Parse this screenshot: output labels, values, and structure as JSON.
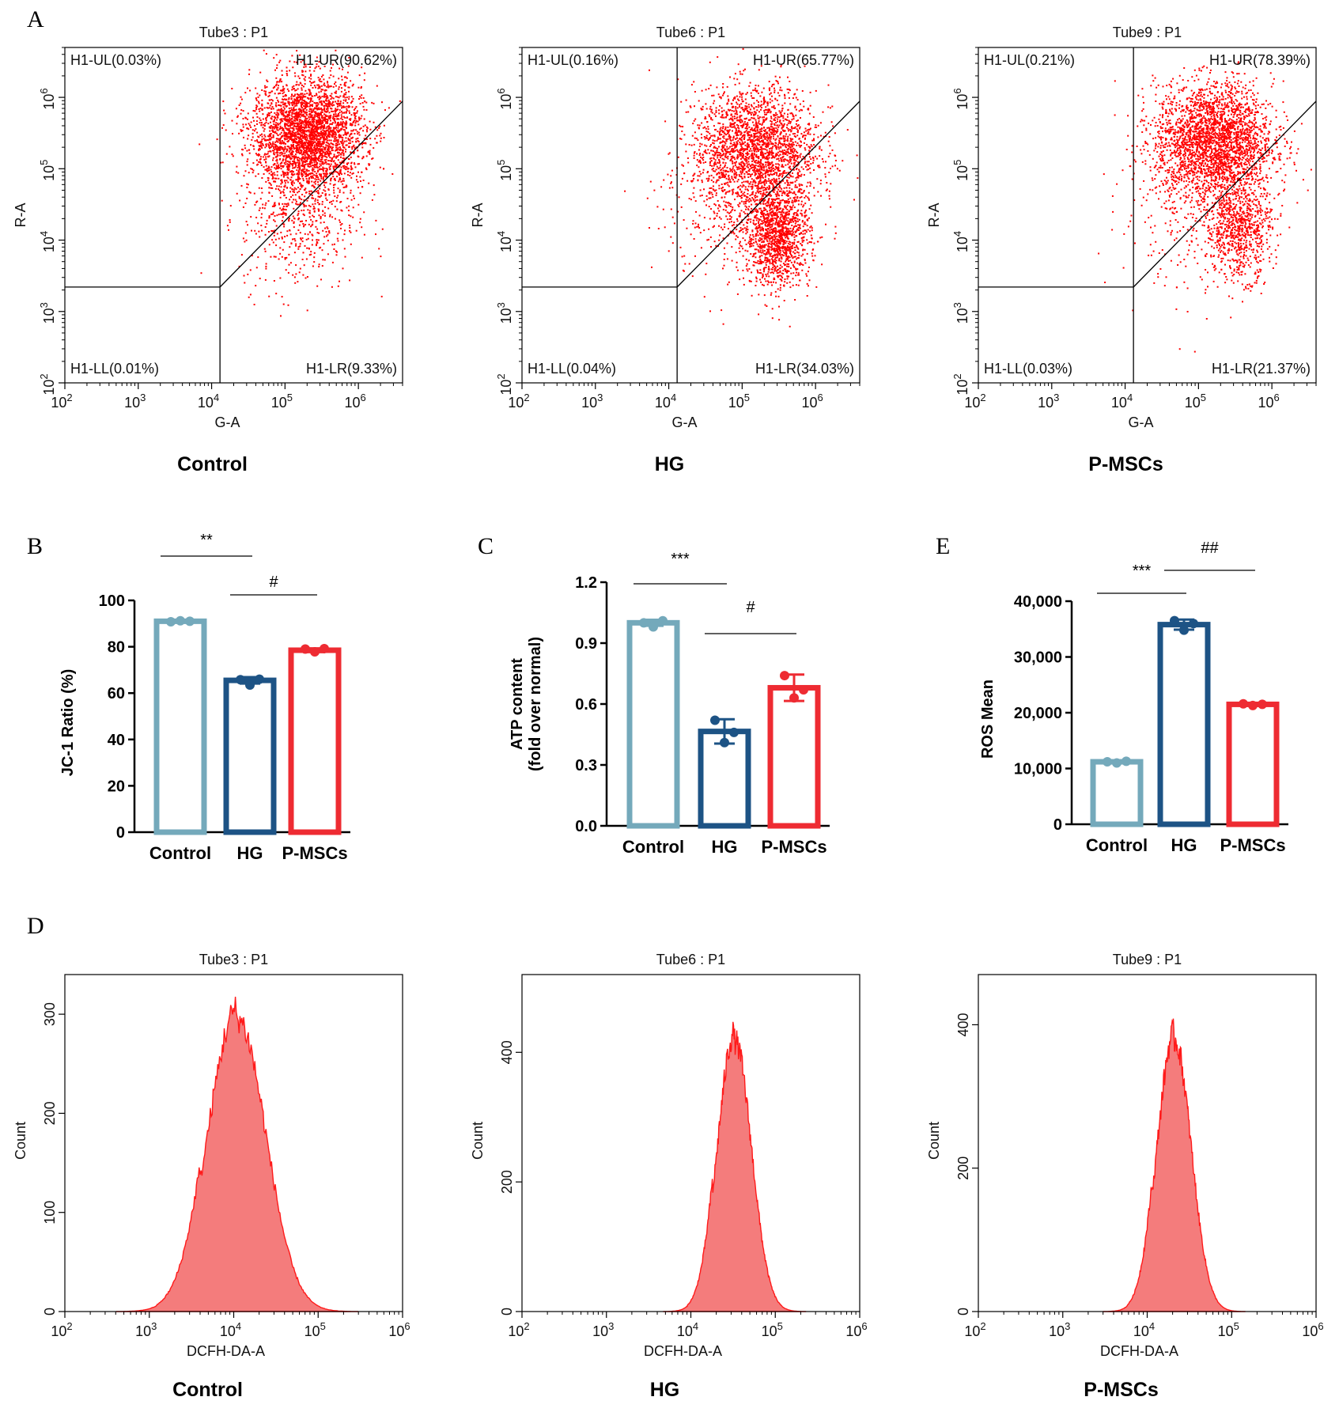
{
  "chart_data": [
    {
      "type": "scatter",
      "panel": "A",
      "title": "Tube3 : P1",
      "group": "Control",
      "xlabel": "G-A",
      "ylabel": "R-A",
      "x_scale": "log",
      "y_scale": "log",
      "xlim": [
        100,
        4000000
      ],
      "ylim": [
        100,
        5000000
      ],
      "x_ticks": [
        "2",
        "3",
        "4",
        "5",
        "6"
      ],
      "y_ticks": [
        "2",
        "3",
        "4",
        "5",
        "6"
      ],
      "gate_x": 13000,
      "gate_y": 2200,
      "quadrants": {
        "UL": "H1-UL(0.03%)",
        "UR": "H1-UR(90.62%)",
        "LL": "H1-LL(0.01%)",
        "LR": "H1-LR(9.33%)"
      },
      "clusters": [
        {
          "x": 200000,
          "y": 300000,
          "sx": 0.38,
          "sy": 0.4,
          "n": 3200
        },
        {
          "x": 150000,
          "y": 20000,
          "sx": 0.4,
          "sy": 0.5,
          "n": 500
        }
      ]
    },
    {
      "type": "scatter",
      "panel": "A",
      "title": "Tube6 : P1",
      "group": "HG",
      "xlabel": "G-A",
      "ylabel": "R-A",
      "x_scale": "log",
      "y_scale": "log",
      "xlim": [
        100,
        4000000
      ],
      "ylim": [
        100,
        5000000
      ],
      "x_ticks": [
        "2",
        "3",
        "4",
        "5",
        "6"
      ],
      "y_ticks": [
        "2",
        "3",
        "4",
        "5",
        "6"
      ],
      "gate_x": 13000,
      "gate_y": 2200,
      "quadrants": {
        "UL": "H1-UL(0.16%)",
        "UR": "H1-UR(65.77%)",
        "LL": "H1-LL(0.04%)",
        "LR": "H1-LR(34.03%)"
      },
      "clusters": [
        {
          "x": 150000,
          "y": 200000,
          "sx": 0.42,
          "sy": 0.42,
          "n": 2200
        },
        {
          "x": 300000,
          "y": 12000,
          "sx": 0.22,
          "sy": 0.35,
          "n": 1300
        },
        {
          "x": 80000,
          "y": 30000,
          "sx": 0.5,
          "sy": 0.6,
          "n": 400
        }
      ]
    },
    {
      "type": "scatter",
      "panel": "A",
      "title": "Tube9 : P1",
      "group": "P-MSCs",
      "xlabel": "G-A",
      "ylabel": "R-A",
      "x_scale": "log",
      "y_scale": "log",
      "xlim": [
        100,
        4000000
      ],
      "ylim": [
        100,
        5000000
      ],
      "x_ticks": [
        "2",
        "3",
        "4",
        "5",
        "6"
      ],
      "y_ticks": [
        "2",
        "3",
        "4",
        "5",
        "6"
      ],
      "gate_x": 13000,
      "gate_y": 2200,
      "quadrants": {
        "UL": "H1-UL(0.21%)",
        "UR": "H1-UR(78.39%)",
        "LL": "H1-LL(0.03%)",
        "LR": "H1-LR(21.37%)"
      },
      "clusters": [
        {
          "x": 160000,
          "y": 250000,
          "sx": 0.4,
          "sy": 0.4,
          "n": 2700
        },
        {
          "x": 350000,
          "y": 15000,
          "sx": 0.22,
          "sy": 0.35,
          "n": 800
        },
        {
          "x": 80000,
          "y": 30000,
          "sx": 0.5,
          "sy": 0.6,
          "n": 300
        }
      ]
    },
    {
      "type": "bar",
      "panel": "B",
      "ylabel": "JC-1 Ratio (%)",
      "categories": [
        "Control",
        "HG",
        "P-MSCs"
      ],
      "values": [
        91,
        65.5,
        78.5
      ],
      "errors": [
        0.6,
        1.4,
        0.8
      ],
      "points": [
        [
          90.8,
          91.2,
          91.0
        ],
        [
          65.8,
          63.5,
          66.0
        ],
        [
          79.0,
          77.8,
          79.2
        ]
      ],
      "colors": [
        "#74a9bb",
        "#1d5385",
        "#ee2b32"
      ],
      "ylim": [
        0,
        100
      ],
      "yticks": [
        "0",
        "20",
        "40",
        "60",
        "80",
        "100"
      ],
      "comparisons": [
        {
          "from": 0,
          "to": 1,
          "label": "**"
        },
        {
          "from": 1,
          "to": 2,
          "label": "#"
        }
      ]
    },
    {
      "type": "bar",
      "panel": "C",
      "ylabel": "ATP content",
      "ylabel2": "(fold over normal)",
      "categories": [
        "Control",
        "HG",
        "P-MSCs"
      ],
      "values": [
        1.0,
        0.465,
        0.68
      ],
      "errors": [
        0.015,
        0.06,
        0.065
      ],
      "points": [
        [
          1.0,
          0.98,
          1.01
        ],
        [
          0.52,
          0.41,
          0.46
        ],
        [
          0.74,
          0.63,
          0.67
        ]
      ],
      "colors": [
        "#74a9bb",
        "#1d5385",
        "#ee2b32"
      ],
      "ylim": [
        0,
        1.2
      ],
      "yticks": [
        "0.0",
        "0.3",
        "0.6",
        "0.9",
        "1.2"
      ],
      "comparisons": [
        {
          "from": 0,
          "to": 1,
          "label": "***"
        },
        {
          "from": 1,
          "to": 2,
          "label": "#"
        }
      ]
    },
    {
      "type": "bar",
      "panel": "E",
      "ylabel": "ROS Mean",
      "categories": [
        "Control",
        "HG",
        "P-MSCs"
      ],
      "values": [
        11200,
        35800,
        21500
      ],
      "errors": [
        150,
        900,
        250
      ],
      "points": [
        [
          11200,
          11000,
          11300
        ],
        [
          36500,
          34800,
          36000
        ],
        [
          21600,
          21300,
          21500
        ]
      ],
      "colors": [
        "#74a9bb",
        "#1d5385",
        "#ee2b32"
      ],
      "ylim": [
        0,
        40000
      ],
      "yticks": [
        "0",
        "10,000",
        "20,000",
        "30,000",
        "40,000"
      ],
      "comparisons": [
        {
          "from": 0,
          "to": 1,
          "label": "***"
        },
        {
          "from": 1,
          "to": 2,
          "label": "##"
        }
      ]
    },
    {
      "type": "area",
      "panel": "D",
      "title": "Tube3 : P1",
      "group": "Control",
      "xlabel": "DCFH-DA-A",
      "ylabel": "Count",
      "x_scale": "log",
      "xlim": [
        100,
        1000000
      ],
      "ylim": [
        0,
        340
      ],
      "x_ticks": [
        "2",
        "3",
        "4",
        "5",
        "6"
      ],
      "yticks": [
        "0",
        "100",
        "200",
        "300"
      ],
      "peak_x": 11000,
      "peak_y": 305,
      "width_decades": 0.34
    },
    {
      "type": "area",
      "panel": "D",
      "title": "Tube6 : P1",
      "group": "HG",
      "xlabel": "DCFH-DA-A",
      "ylabel": "Count",
      "x_scale": "log",
      "xlim": [
        100,
        1000000
      ],
      "ylim": [
        0,
        520
      ],
      "x_ticks": [
        "2",
        "3",
        "4",
        "5",
        "6"
      ],
      "yticks": [
        "0",
        "200",
        "400"
      ],
      "peak_x": 33000,
      "peak_y": 430,
      "width_decades": 0.2
    },
    {
      "type": "area",
      "panel": "D",
      "title": "Tube9 : P1",
      "group": "P-MSCs",
      "xlabel": "DCFH-DA-A",
      "ylabel": "Count",
      "x_scale": "log",
      "xlim": [
        100,
        1000000
      ],
      "ylim": [
        0,
        470
      ],
      "x_ticks": [
        "2",
        "3",
        "4",
        "5",
        "6"
      ],
      "yticks": [
        "0",
        "200",
        "400"
      ],
      "peak_x": 21000,
      "peak_y": 390,
      "width_decades": 0.2
    }
  ],
  "panel_labels": {
    "A": "A",
    "B": "B",
    "C": "C",
    "D": "D",
    "E": "E"
  },
  "tick_base": "10",
  "colors": {
    "scatter": "#ff0000",
    "hist_fill": "#f47c7c",
    "hist_line": "#ff1a1a"
  }
}
